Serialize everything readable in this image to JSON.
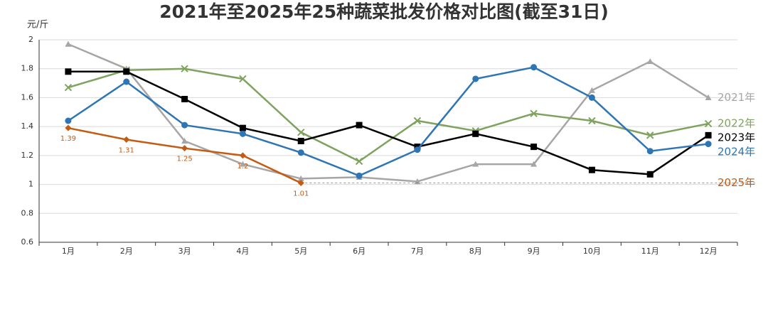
{
  "chart_data": {
    "type": "line",
    "title": "2021年至2025年25种蔬菜批发价格对比图(截至31日)",
    "y_label": "元/斤",
    "categories": [
      "1月",
      "2月",
      "3月",
      "4月",
      "5月",
      "6月",
      "7月",
      "8月",
      "9月",
      "10月",
      "11月",
      "12月"
    ],
    "ylim": [
      0.6,
      2
    ],
    "yticks": [
      0.6,
      0.8,
      1,
      1.2,
      1.4,
      1.6,
      1.8,
      2
    ],
    "grid": true,
    "series": [
      {
        "name": "2021年",
        "color": "#a6a6a6",
        "marker": "triangle",
        "values": [
          1.97,
          1.8,
          1.3,
          1.14,
          1.04,
          1.05,
          1.02,
          1.14,
          1.14,
          1.65,
          1.85,
          1.6
        ]
      },
      {
        "name": "2022年",
        "color": "#7fa35f",
        "marker": "cross",
        "values": [
          1.67,
          1.79,
          1.8,
          1.73,
          1.36,
          1.16,
          1.44,
          1.37,
          1.49,
          1.44,
          1.34,
          1.42
        ]
      },
      {
        "name": "2023年",
        "color": "#000000",
        "marker": "square",
        "values": [
          1.78,
          1.78,
          1.59,
          1.39,
          1.3,
          1.41,
          1.26,
          1.35,
          1.26,
          1.1,
          1.07,
          1.34
        ]
      },
      {
        "name": "2024年",
        "color": "#2e75b6",
        "marker": "circle",
        "values": [
          1.44,
          1.71,
          1.41,
          1.35,
          1.22,
          1.06,
          1.24,
          1.73,
          1.81,
          1.6,
          1.23,
          1.28
        ]
      },
      {
        "name": "2025年",
        "color": "#c55a11",
        "marker": "diamond",
        "data_labels": true,
        "extend_last": true,
        "values": [
          1.39,
          1.31,
          1.25,
          1.2,
          1.01,
          null,
          null,
          null,
          null,
          null,
          null,
          null
        ]
      }
    ]
  }
}
